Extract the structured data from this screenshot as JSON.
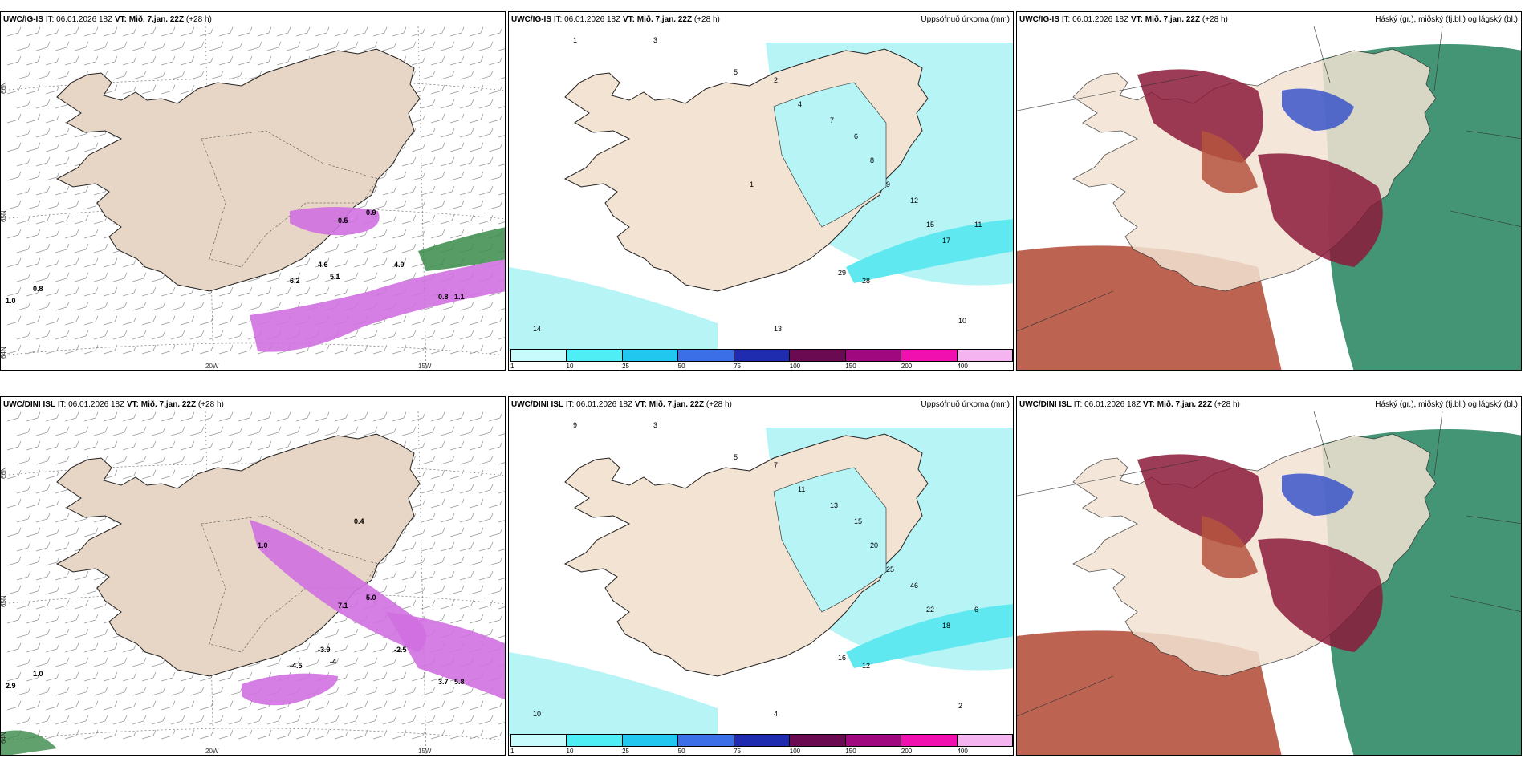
{
  "panels": [
    {
      "model": "UWC/IG-IS",
      "init_label": "IT: 06.01.2026 18Z",
      "valid_prefix": "VT:",
      "valid_time": "Mið. 7.jan. 22Z",
      "lead": "(+28 h)",
      "right_title": "",
      "kind": "wind",
      "lat_labels": [
        "66N",
        "65N",
        "64N"
      ],
      "lon_labels": [
        "20W",
        "15W"
      ],
      "values": [
        "0.8",
        "1.0",
        "0.8",
        "1.1",
        "4.0",
        "4.6",
        "5.1",
        "6.2",
        "0.5",
        "0.9"
      ]
    },
    {
      "model": "UWC/IG-IS",
      "init_label": "IT: 06.01.2026 18Z",
      "valid_prefix": "VT:",
      "valid_time": "Mið. 7.jan. 22Z",
      "lead": "(+28 h)",
      "right_title": "Uppsöfnuð úrkoma (mm)",
      "kind": "precip",
      "values": [
        "1",
        "3",
        "5",
        "2",
        "4",
        "7",
        "6",
        "8",
        "9",
        "12",
        "15",
        "17",
        "29",
        "28",
        "14",
        "13",
        "10",
        "11",
        "1"
      ],
      "colorbar": [
        "1",
        "10",
        "25",
        "50",
        "75",
        "100",
        "150",
        "200",
        "400"
      ]
    },
    {
      "model": "UWC/IG-IS",
      "init_label": "IT: 06.01.2026 18Z",
      "valid_prefix": "VT:",
      "valid_time": "Mið. 7.jan. 22Z",
      "lead": "(+28 h)",
      "right_title": "Háský (gr.), miðský (fj.bl.) og lágský (bl.)",
      "kind": "cloud"
    },
    {
      "model": "UWC/DINI ISL",
      "init_label": "IT: 06.01.2026 18Z",
      "valid_prefix": "VT:",
      "valid_time": "Mið. 7.jan. 22Z",
      "lead": "(+28 h)",
      "right_title": "",
      "kind": "wind",
      "lat_labels": [
        "66N",
        "65N",
        "64N"
      ],
      "lon_labels": [
        "20W",
        "15W"
      ],
      "values": [
        "1.0",
        "2.9",
        "3.7",
        "5.8",
        "-2.5",
        "-3.9",
        "-4",
        "-4.5",
        "7.1",
        "5.0",
        "0.4",
        "1.0"
      ]
    },
    {
      "model": "UWC/DINI ISL",
      "init_label": "IT: 06.01.2026 18Z",
      "valid_prefix": "VT:",
      "valid_time": "Mið. 7.jan. 22Z",
      "lead": "(+28 h)",
      "right_title": "Uppsöfnuð úrkoma (mm)",
      "kind": "precip",
      "values": [
        "9",
        "3",
        "5",
        "7",
        "11",
        "13",
        "15",
        "20",
        "25",
        "46",
        "22",
        "18",
        "16",
        "12",
        "10",
        "4",
        "2",
        "6"
      ],
      "colorbar": [
        "1",
        "10",
        "25",
        "50",
        "75",
        "100",
        "150",
        "200",
        "400"
      ]
    },
    {
      "model": "UWC/DINI ISL",
      "init_label": "IT: 06.01.2026 18Z",
      "valid_prefix": "VT:",
      "valid_time": "Mið. 7.jan. 22Z",
      "lead": "(+28 h)",
      "right_title": "Háský (gr.), miðský (fj.bl.) og lágský (bl.)",
      "kind": "cloud"
    }
  ],
  "colors": {
    "land": "#f3e3d3",
    "land_wind": "#e7d6c5",
    "precip_light": "#b6f4f6",
    "precip_med": "#5fe8f0",
    "purple": "#d070e0",
    "dark_purple": "#6a2a7a",
    "green": "#3a8a4a",
    "cloud_high": "#b5533e",
    "cloud_mid": "#8b1a3a",
    "cloud_low": "#2f8a66",
    "cloud_blue": "#3a55c8",
    "colorbar": [
      "#c8fbfc",
      "#4feef5",
      "#22c7ef",
      "#3a6fe8",
      "#1f2cb0",
      "#6a0a50",
      "#a00880",
      "#f010b0",
      "#f3b4f0"
    ]
  }
}
